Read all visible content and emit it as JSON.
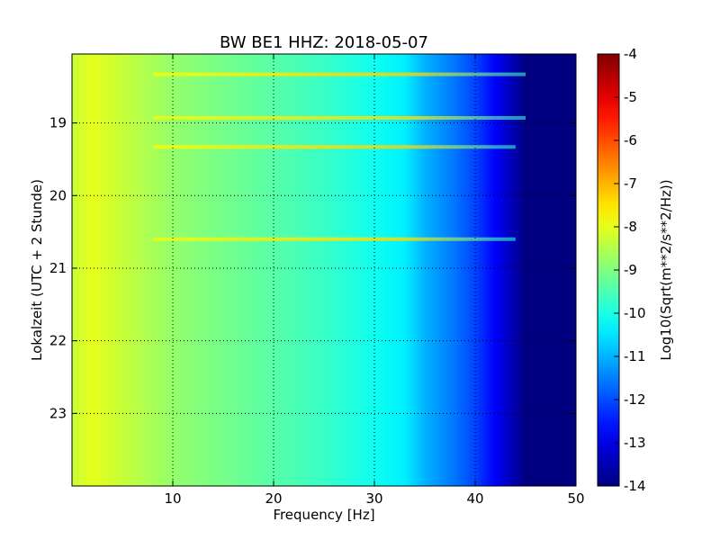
{
  "chart_data": {
    "type": "heatmap",
    "title": "BW BE1 HHZ: 2018-05-07",
    "xlabel": "Frequency [Hz]",
    "ylabel": "Lokalzeit (UTC + 2 Stunde)",
    "colorbar_label": "Log10(Sqrt(m**2/s**2/Hz))",
    "colormap": "jet",
    "xlim": [
      0,
      50
    ],
    "ylim": [
      24,
      18.05
    ],
    "clim": [
      -14,
      -4
    ],
    "x_ticks": [
      "10",
      "20",
      "30",
      "40",
      "50"
    ],
    "y_ticks": [
      "19",
      "20",
      "21",
      "22",
      "23"
    ],
    "colorbar_ticks": [
      "-4",
      "-5",
      "-6",
      "-7",
      "-8",
      "-9",
      "-10",
      "-11",
      "-12",
      "-13",
      "-14"
    ],
    "grid": true,
    "spectrum_profile": {
      "frequency_hz": [
        0,
        2,
        5,
        10,
        15,
        20,
        25,
        30,
        33,
        35,
        38,
        40,
        42,
        44,
        45,
        50
      ],
      "log10_amplitude": [
        -8.3,
        -8.0,
        -8.3,
        -8.8,
        -9.1,
        -9.4,
        -9.7,
        -10.1,
        -10.4,
        -11.0,
        -11.6,
        -12.1,
        -12.8,
        -13.6,
        -14.0,
        -14.0
      ]
    },
    "horizontal_bands": [
      {
        "time_h": 18.33,
        "freq_max_hz": 45,
        "log10_amplitude": -7.9
      },
      {
        "time_h": 18.93,
        "freq_max_hz": 45,
        "log10_amplitude": -8.0
      },
      {
        "time_h": 19.33,
        "freq_max_hz": 44,
        "log10_amplitude": -7.9
      },
      {
        "time_h": 20.6,
        "freq_max_hz": 44,
        "log10_amplitude": -8.0
      }
    ]
  }
}
